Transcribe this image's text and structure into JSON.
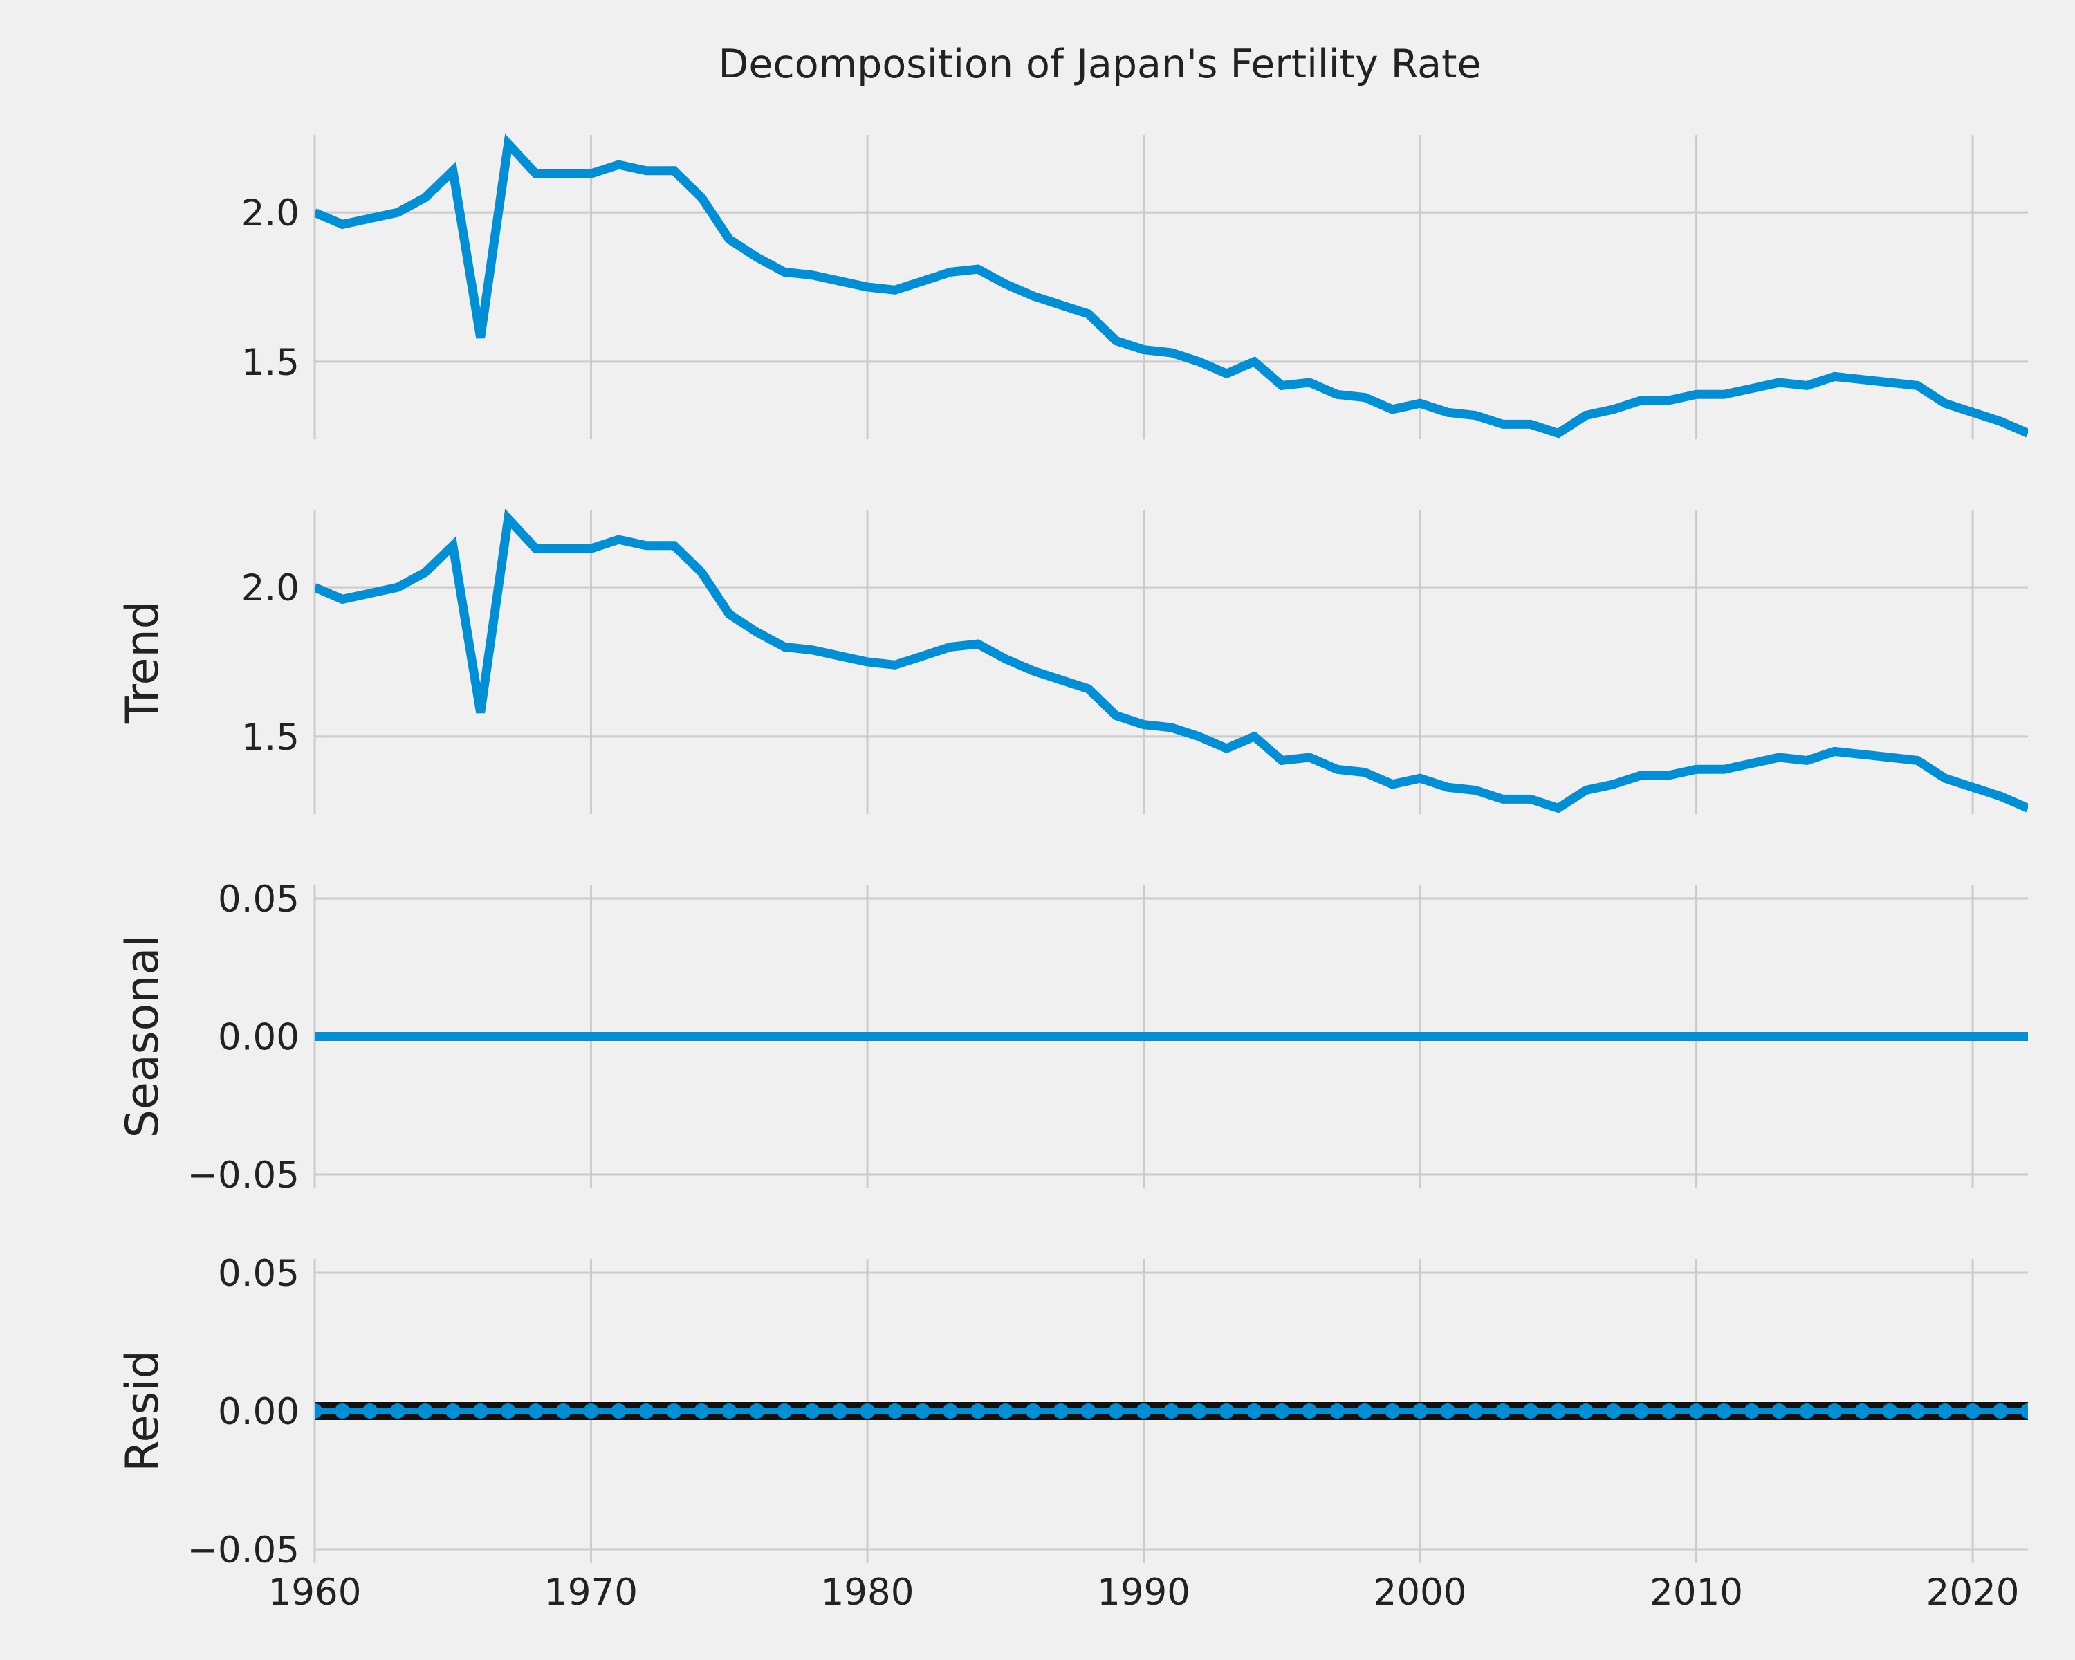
{
  "chart_data": {
    "type": "line",
    "title": "Decomposition of Japan's Fertility Rate",
    "xlim": [
      1960,
      2022
    ],
    "x_ticks": [
      "1960",
      "1970",
      "1980",
      "1990",
      "2000",
      "2010",
      "2020"
    ],
    "line_color": "#008fd5",
    "background_color": "#f0f0f0",
    "grid": true,
    "x": [
      1960,
      1961,
      1962,
      1963,
      1964,
      1965,
      1966,
      1967,
      1968,
      1969,
      1970,
      1971,
      1972,
      1973,
      1974,
      1975,
      1976,
      1977,
      1978,
      1979,
      1980,
      1981,
      1982,
      1983,
      1984,
      1985,
      1986,
      1987,
      1988,
      1989,
      1990,
      1991,
      1992,
      1993,
      1994,
      1995,
      1996,
      1997,
      1998,
      1999,
      2000,
      2001,
      2002,
      2003,
      2004,
      2005,
      2006,
      2007,
      2008,
      2009,
      2010,
      2011,
      2012,
      2013,
      2014,
      2015,
      2016,
      2017,
      2018,
      2019,
      2020,
      2021,
      2022
    ],
    "panels": [
      {
        "component": "observed",
        "ylabel": "",
        "ylim": [
          1.24,
          2.26
        ],
        "y_ticks": [
          "1.5",
          "2.0"
        ],
        "y_tick_values": [
          1.5,
          2.0
        ],
        "style": "line",
        "values": [
          2.0,
          1.96,
          1.98,
          2.0,
          2.05,
          2.14,
          1.58,
          2.23,
          2.13,
          2.13,
          2.13,
          2.16,
          2.14,
          2.14,
          2.05,
          1.91,
          1.85,
          1.8,
          1.79,
          1.77,
          1.75,
          1.74,
          1.77,
          1.8,
          1.81,
          1.76,
          1.72,
          1.69,
          1.66,
          1.57,
          1.54,
          1.53,
          1.5,
          1.46,
          1.5,
          1.42,
          1.43,
          1.39,
          1.38,
          1.34,
          1.36,
          1.33,
          1.32,
          1.29,
          1.29,
          1.26,
          1.32,
          1.34,
          1.37,
          1.37,
          1.39,
          1.39,
          1.41,
          1.43,
          1.42,
          1.45,
          1.44,
          1.43,
          1.42,
          1.36,
          1.33,
          1.3,
          1.26
        ]
      },
      {
        "component": "trend",
        "ylabel": "Trend",
        "ylim": [
          1.24,
          2.26
        ],
        "y_ticks": [
          "1.5",
          "2.0"
        ],
        "y_tick_values": [
          1.5,
          2.0
        ],
        "style": "line",
        "values": [
          2.0,
          1.96,
          1.98,
          2.0,
          2.05,
          2.14,
          1.58,
          2.23,
          2.13,
          2.13,
          2.13,
          2.16,
          2.14,
          2.14,
          2.05,
          1.91,
          1.85,
          1.8,
          1.79,
          1.77,
          1.75,
          1.74,
          1.77,
          1.8,
          1.81,
          1.76,
          1.72,
          1.69,
          1.66,
          1.57,
          1.54,
          1.53,
          1.5,
          1.46,
          1.5,
          1.42,
          1.43,
          1.39,
          1.38,
          1.34,
          1.36,
          1.33,
          1.32,
          1.29,
          1.29,
          1.26,
          1.32,
          1.34,
          1.37,
          1.37,
          1.39,
          1.39,
          1.41,
          1.43,
          1.42,
          1.45,
          1.44,
          1.43,
          1.42,
          1.36,
          1.33,
          1.3,
          1.26
        ]
      },
      {
        "component": "seasonal",
        "ylabel": "Seasonal",
        "ylim": [
          -0.055,
          0.055
        ],
        "y_ticks": [
          "−0.05",
          "0.00",
          "0.05"
        ],
        "y_tick_values": [
          -0.05,
          0.0,
          0.05
        ],
        "style": "line",
        "constant_value": 0.0
      },
      {
        "component": "resid",
        "ylabel": "Resid",
        "ylim": [
          -0.055,
          0.055
        ],
        "y_ticks": [
          "−0.05",
          "0.00",
          "0.05"
        ],
        "y_tick_values": [
          -0.05,
          0.0,
          0.05
        ],
        "style": "markers",
        "constant_value": 0.0
      }
    ]
  }
}
